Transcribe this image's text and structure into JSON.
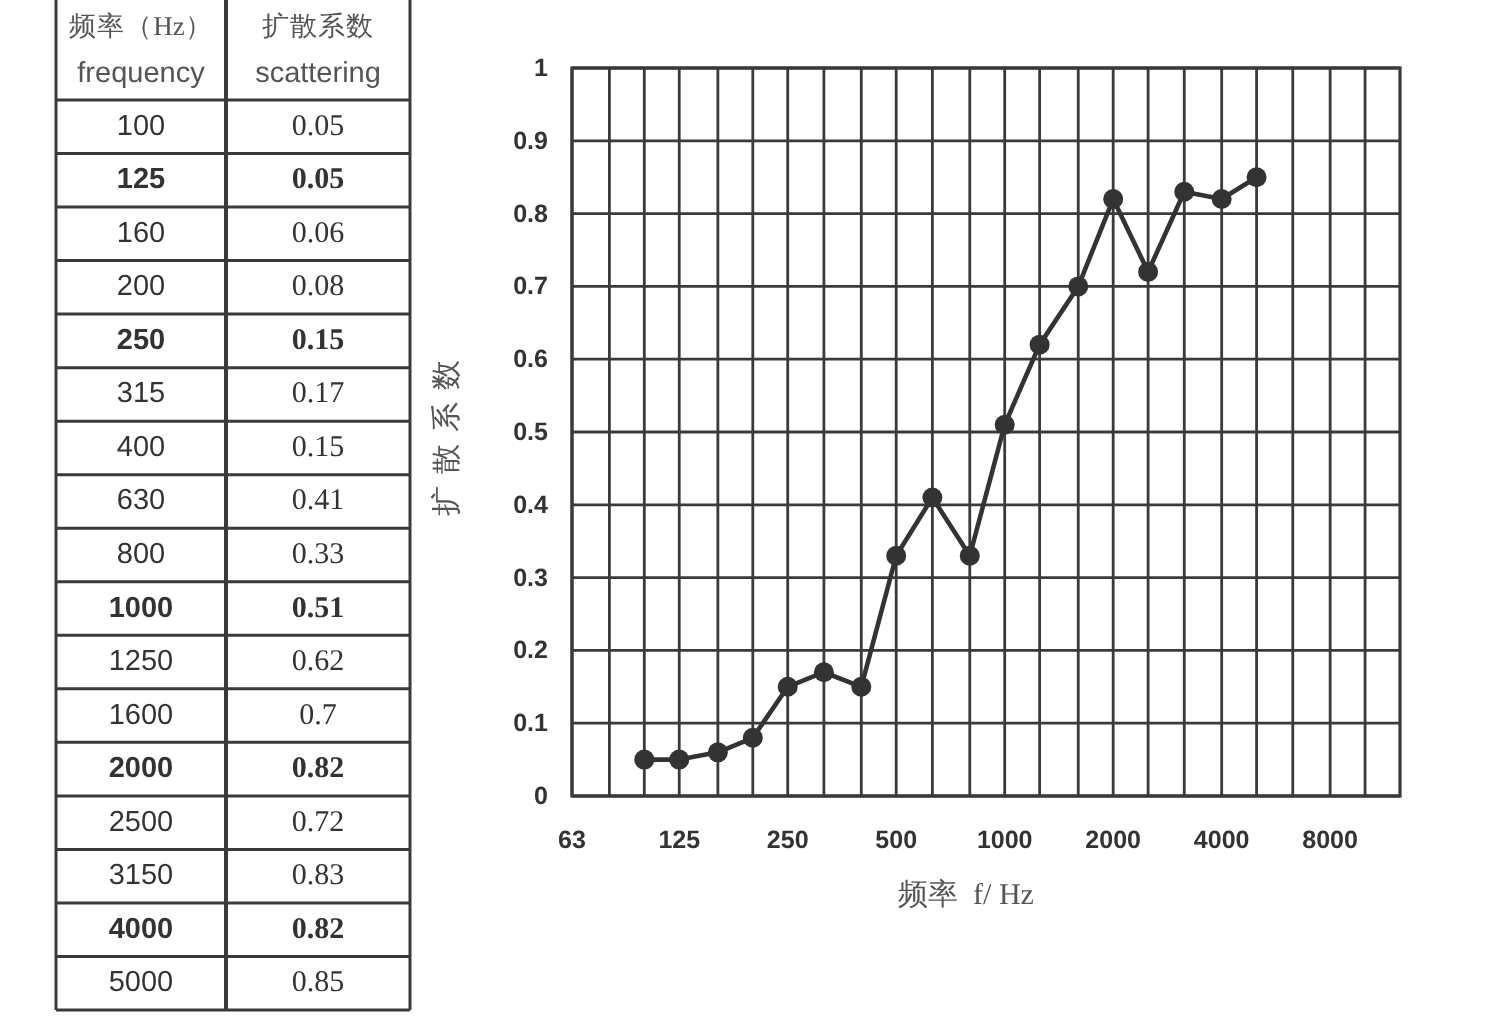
{
  "chart_data": {
    "type": "line",
    "xlabel": "频率  f/ Hz",
    "ylabel": "扩散系数",
    "annotations": [
      "频率（Hz）",
      "frequency",
      "扩散系数",
      "scattering",
      "100",
      "0.05",
      "125",
      "0.05",
      "160",
      "0.06",
      "200",
      "0.08",
      "250",
      "0.15",
      "315",
      "0.17",
      "400",
      "0.15",
      "630",
      "0.41",
      "800",
      "0.33",
      "1000",
      "0.51",
      "1250",
      "0.62",
      "1600",
      "0.7",
      "2000",
      "0.82",
      "2500",
      "0.72",
      "3150",
      "0.83",
      "4000",
      "0.82",
      "5000",
      "0.85"
    ],
    "x": [
      100,
      125,
      160,
      200,
      250,
      315,
      400,
      500,
      630,
      800,
      1000,
      1250,
      1600,
      2000,
      2500,
      3150,
      4000,
      5000
    ],
    "values": [
      0.05,
      0.05,
      0.06,
      0.08,
      0.15,
      0.17,
      0.15,
      0.33,
      0.41,
      0.33,
      0.51,
      0.62,
      0.7,
      0.82,
      0.72,
      0.83,
      0.82,
      0.85
    ],
    "color": "#333333",
    "log": "x",
    "xlim": [
      63,
      12500
    ],
    "xticks": [
      63,
      {
        "value": 80,
        "label": null
      },
      {
        "value": 100,
        "label": null
      },
      125,
      {
        "value": 160,
        "label": null
      },
      {
        "value": 200,
        "label": null
      },
      250,
      {
        "value": 315,
        "label": null
      },
      {
        "value": 400,
        "label": null
      },
      500,
      {
        "value": 630,
        "label": null
      },
      {
        "value": 800,
        "label": null
      },
      1000,
      {
        "value": 1250,
        "label": null
      },
      {
        "value": 1600,
        "label": null
      },
      2000,
      {
        "value": 2500,
        "label": null
      },
      {
        "value": 3150,
        "label": null
      },
      4000,
      {
        "value": 5000,
        "label": null
      },
      {
        "value": 6300,
        "label": null
      },
      8000,
      {
        "value": 10000,
        "label": null
      }
    ],
    "ylim": [
      0,
      1
    ],
    "yticks": [
      0,
      0.1,
      0.2,
      0.3,
      0.4,
      0.5,
      0.6,
      0.7,
      0.8,
      0.9,
      1
    ],
    "grid": true,
    "marker": "circle",
    "line_style": "solid"
  }
}
